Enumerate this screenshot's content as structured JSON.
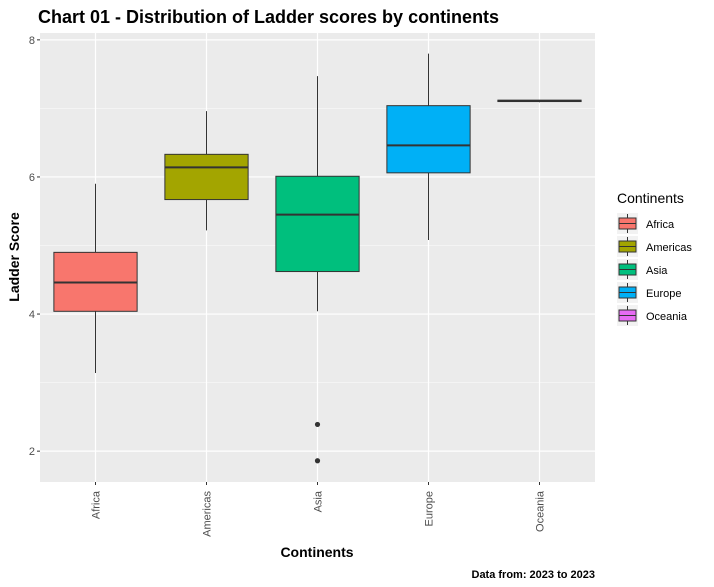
{
  "chart_data": {
    "type": "boxplot",
    "title": "Chart 01 - Distribution of Ladder scores by continents",
    "xlabel": "Continents",
    "ylabel": "Ladder Score",
    "caption": "Data from: 2023  to  2023",
    "ylim": [
      1.55,
      8.1
    ],
    "yticks": [
      2,
      4,
      6,
      8
    ],
    "grid": true,
    "legend": {
      "title": "Continents",
      "placement": "right"
    },
    "categories": [
      "Africa",
      "Americas",
      "Asia",
      "Europe",
      "Oceania"
    ],
    "boxes": [
      {
        "name": "Africa",
        "color": "#F8766D",
        "min": 3.14,
        "q1": 4.04,
        "median": 4.46,
        "q3": 4.9,
        "max": 5.9,
        "outliers": []
      },
      {
        "name": "Americas",
        "color": "#A3A500",
        "min": 5.22,
        "q1": 5.67,
        "median": 6.14,
        "q3": 6.33,
        "max": 6.96,
        "outliers": []
      },
      {
        "name": "Asia",
        "color": "#00BF7D",
        "min": 4.04,
        "q1": 4.62,
        "median": 5.45,
        "q3": 6.01,
        "max": 7.47,
        "outliers": [
          2.39,
          1.86
        ]
      },
      {
        "name": "Europe",
        "color": "#00B0F6",
        "min": 5.08,
        "q1": 6.06,
        "median": 6.46,
        "q3": 7.04,
        "max": 7.8,
        "outliers": []
      },
      {
        "name": "Oceania",
        "color": "#E76BF3",
        "min": 7.09,
        "q1": 7.1,
        "median": 7.11,
        "q3": 7.12,
        "max": 7.12,
        "outliers": []
      }
    ]
  }
}
